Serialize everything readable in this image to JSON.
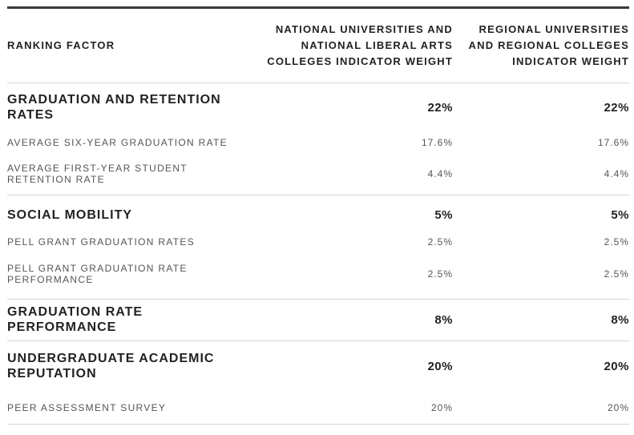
{
  "header": {
    "factor": "RANKING FACTOR",
    "col_national": "NATIONAL UNIVERSITIES AND NATIONAL LIBERAL ARTS COLLEGES INDICATOR WEIGHT",
    "col_regional": "REGIONAL UNIVERSITIES AND REGIONAL COLLEGES INDICATOR WEIGHT"
  },
  "groups": [
    {
      "name": "GRADUATION AND RETENTION RATES",
      "national": "22%",
      "regional": "22%",
      "items": [
        {
          "name": "AVERAGE SIX-YEAR GRADUATION RATE",
          "national": "17.6%",
          "regional": "17.6%"
        },
        {
          "name": "AVERAGE FIRST-YEAR STUDENT RETENTION RATE",
          "national": "4.4%",
          "regional": "4.4%"
        }
      ]
    },
    {
      "name": "SOCIAL MOBILITY",
      "national": "5%",
      "regional": "5%",
      "items": [
        {
          "name": "PELL GRANT GRADUATION RATES",
          "national": "2.5%",
          "regional": "2.5%"
        },
        {
          "name": "PELL GRANT GRADUATION RATE PERFORMANCE",
          "national": "2.5%",
          "regional": "2.5%"
        }
      ]
    },
    {
      "name": "GRADUATION RATE PERFORMANCE",
      "national": "8%",
      "regional": "8%",
      "items": []
    },
    {
      "name": "UNDERGRADUATE ACADEMIC REPUTATION",
      "national": "20%",
      "regional": "20%",
      "items": [
        {
          "name": "PEER ASSESSMENT SURVEY",
          "national": "20%",
          "regional": "20%"
        }
      ]
    }
  ]
}
